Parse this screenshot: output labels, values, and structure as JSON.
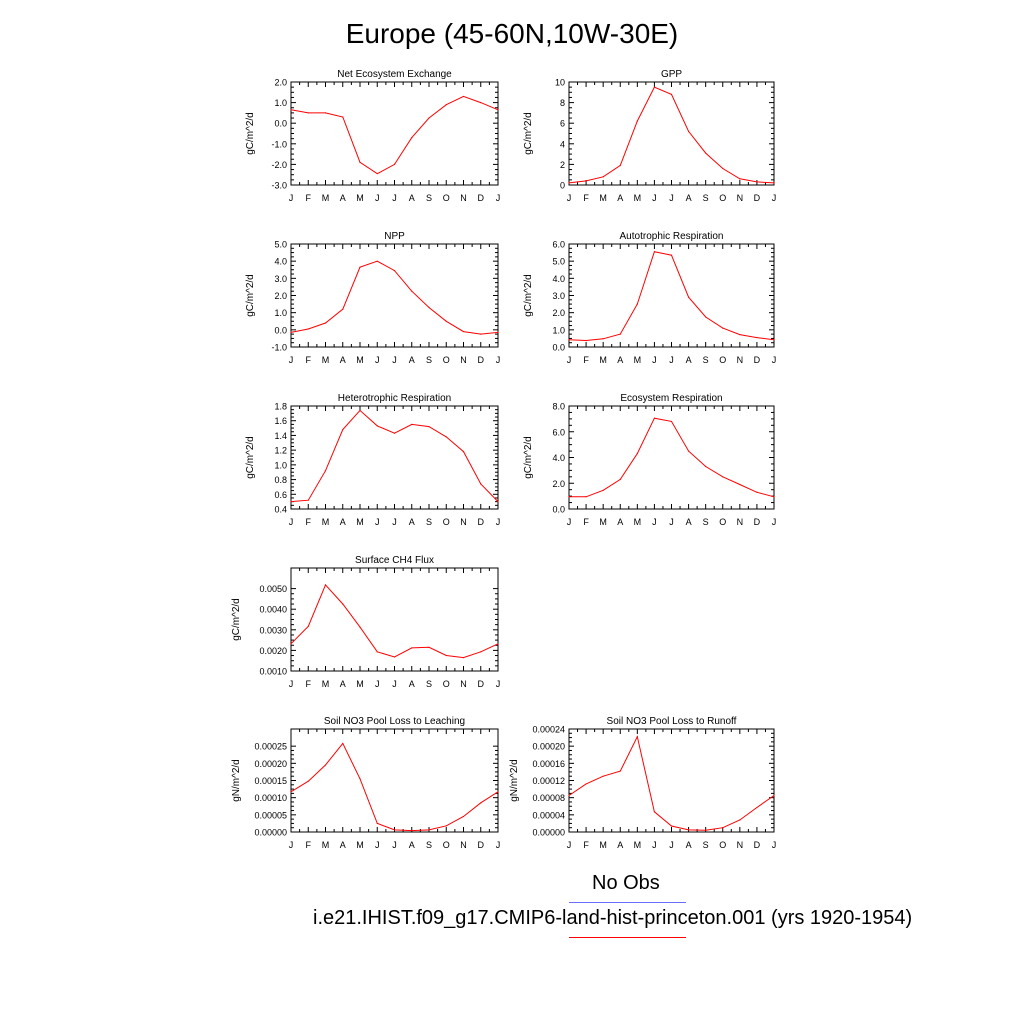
{
  "title": "Europe (45-60N,10W-30E)",
  "colors": {
    "model": "#ff0000",
    "obs": "#6d6dff",
    "axis": "#000000"
  },
  "legend": {
    "obs_label": "No Obs",
    "model_label": "i.e21.IHIST.f09_g17.CMIP6-land-hist-princeton.001 (yrs 1920-1954)"
  },
  "chart_data": [
    {
      "type": "line",
      "title": "Net Ecosystem Exchange",
      "ylabel": "gC/m^2/d",
      "categories": [
        "J",
        "F",
        "M",
        "A",
        "M",
        "J",
        "J",
        "A",
        "S",
        "O",
        "N",
        "D",
        "J"
      ],
      "ylim": [
        -3.0,
        2.0
      ],
      "yticks": [
        -3.0,
        -2.0,
        -1.0,
        0.0,
        1.0,
        2.0
      ],
      "ytick_labels": [
        "-3.0",
        "-2.0",
        "-1.0",
        "0.0",
        "1.0",
        "2.0"
      ],
      "values": [
        0.65,
        0.5,
        0.5,
        0.3,
        -1.9,
        -2.45,
        -2.0,
        -0.7,
        0.25,
        0.9,
        1.3,
        1.0,
        0.65
      ]
    },
    {
      "type": "line",
      "title": "GPP",
      "ylabel": "gC/m^2/d",
      "categories": [
        "J",
        "F",
        "M",
        "A",
        "M",
        "J",
        "J",
        "A",
        "S",
        "O",
        "N",
        "D",
        "J"
      ],
      "ylim": [
        0,
        10
      ],
      "yticks": [
        0,
        2,
        4,
        6,
        8,
        10
      ],
      "ytick_labels": [
        "0",
        "2",
        "4",
        "6",
        "8",
        "10"
      ],
      "values": [
        0.2,
        0.4,
        0.8,
        1.9,
        6.2,
        9.5,
        8.8,
        5.2,
        3.1,
        1.6,
        0.6,
        0.3,
        0.2
      ]
    },
    {
      "type": "line",
      "title": "NPP",
      "ylabel": "gC/m^2/d",
      "categories": [
        "J",
        "F",
        "M",
        "A",
        "M",
        "J",
        "J",
        "A",
        "S",
        "O",
        "N",
        "D",
        "J"
      ],
      "ylim": [
        -1.0,
        5.0
      ],
      "yticks": [
        -1.0,
        0.0,
        1.0,
        2.0,
        3.0,
        4.0,
        5.0
      ],
      "ytick_labels": [
        "-1.0",
        "0.0",
        "1.0",
        "2.0",
        "3.0",
        "4.0",
        "5.0"
      ],
      "values": [
        -0.15,
        0.05,
        0.4,
        1.2,
        3.65,
        4.0,
        3.45,
        2.25,
        1.3,
        0.5,
        -0.1,
        -0.25,
        -0.15
      ]
    },
    {
      "type": "line",
      "title": "Autotrophic Respiration",
      "ylabel": "gC/m^2/d",
      "categories": [
        "J",
        "F",
        "M",
        "A",
        "M",
        "J",
        "J",
        "A",
        "S",
        "O",
        "N",
        "D",
        "J"
      ],
      "ylim": [
        0.0,
        6.0
      ],
      "yticks": [
        0.0,
        1.0,
        2.0,
        3.0,
        4.0,
        5.0,
        6.0
      ],
      "ytick_labels": [
        "0.0",
        "1.0",
        "2.0",
        "3.0",
        "4.0",
        "5.0",
        "6.0"
      ],
      "values": [
        0.42,
        0.38,
        0.48,
        0.75,
        2.5,
        5.55,
        5.35,
        2.9,
        1.75,
        1.1,
        0.72,
        0.55,
        0.42
      ]
    },
    {
      "type": "line",
      "title": "Heterotrophic Respiration",
      "ylabel": "gC/m^2/d",
      "categories": [
        "J",
        "F",
        "M",
        "A",
        "M",
        "J",
        "J",
        "A",
        "S",
        "O",
        "N",
        "D",
        "J"
      ],
      "ylim": [
        0.4,
        1.8
      ],
      "yticks": [
        0.4,
        0.6,
        0.8,
        1.0,
        1.2,
        1.4,
        1.6,
        1.8
      ],
      "ytick_labels": [
        "0.4",
        "0.6",
        "0.8",
        "1.0",
        "1.2",
        "1.4",
        "1.6",
        "1.8"
      ],
      "values": [
        0.5,
        0.52,
        0.92,
        1.48,
        1.74,
        1.53,
        1.43,
        1.55,
        1.52,
        1.38,
        1.18,
        0.74,
        0.5
      ]
    },
    {
      "type": "line",
      "title": "Ecosystem Respiration",
      "ylabel": "gC/m^2/d",
      "categories": [
        "J",
        "F",
        "M",
        "A",
        "M",
        "J",
        "J",
        "A",
        "S",
        "O",
        "N",
        "D",
        "J"
      ],
      "ylim": [
        0.0,
        8.0
      ],
      "yticks": [
        0.0,
        2.0,
        4.0,
        6.0,
        8.0
      ],
      "ytick_labels": [
        "0.0",
        "2.0",
        "4.0",
        "6.0",
        "8.0"
      ],
      "values": [
        0.95,
        0.95,
        1.45,
        2.3,
        4.3,
        7.05,
        6.8,
        4.5,
        3.3,
        2.5,
        1.9,
        1.3,
        0.95
      ]
    },
    {
      "type": "line",
      "title": "Surface CH4 Flux",
      "ylabel": "gC/m^2/d",
      "categories": [
        "J",
        "F",
        "M",
        "A",
        "M",
        "J",
        "J",
        "A",
        "S",
        "O",
        "N",
        "D",
        "J"
      ],
      "ylim": [
        0.001,
        0.006
      ],
      "yticks": [
        0.001,
        0.002,
        0.003,
        0.004,
        0.005
      ],
      "ytick_labels": [
        "0.0010",
        "0.0020",
        "0.0030",
        "0.0040",
        "0.0050"
      ],
      "values": [
        0.00232,
        0.00317,
        0.00518,
        0.00425,
        0.00313,
        0.00193,
        0.00168,
        0.00212,
        0.00215,
        0.00175,
        0.00165,
        0.00193,
        0.00232
      ]
    },
    {
      "type": "line",
      "title": "Soil NO3 Pool Loss to Leaching",
      "ylabel": "gN/m^2/d",
      "categories": [
        "J",
        "F",
        "M",
        "A",
        "M",
        "J",
        "J",
        "A",
        "S",
        "O",
        "N",
        "D",
        "J"
      ],
      "ylim": [
        0,
        0.0003
      ],
      "yticks": [
        0,
        5e-05,
        0.0001,
        0.00015,
        0.0002,
        0.00025
      ],
      "ytick_labels": [
        "0.00000",
        "0.00005",
        "0.00010",
        "0.00015",
        "0.00020",
        "0.00025"
      ],
      "values": [
        0.000117,
        0.000148,
        0.000195,
        0.000258,
        0.000155,
        2.5e-05,
        6e-06,
        4e-06,
        6e-06,
        1.8e-05,
        4.5e-05,
        8.5e-05,
        0.000117
      ]
    },
    {
      "type": "line",
      "title": "Soil NO3 Pool Loss to Runoff",
      "ylabel": "gN/m^2/d",
      "categories": [
        "J",
        "F",
        "M",
        "A",
        "M",
        "J",
        "J",
        "A",
        "S",
        "O",
        "N",
        "D",
        "J"
      ],
      "ylim": [
        0,
        0.00024
      ],
      "yticks": [
        0,
        4e-05,
        8e-05,
        0.00012,
        0.00016,
        0.0002,
        0.00024
      ],
      "ytick_labels": [
        "0.00000",
        "0.00004",
        "0.00008",
        "0.00012",
        "0.00016",
        "0.00020",
        "0.00024"
      ],
      "values": [
        8.5e-05,
        0.000112,
        0.00013,
        0.000142,
        0.000222,
        4.7e-05,
        1.4e-05,
        5e-06,
        4e-06,
        1e-05,
        2.8e-05,
        5.7e-05,
        8.5e-05
      ]
    }
  ]
}
